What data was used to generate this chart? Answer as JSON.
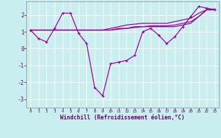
{
  "xlabel": "Windchill (Refroidissement éolien,°C)",
  "x_ticks": [
    0,
    1,
    2,
    3,
    4,
    5,
    6,
    7,
    8,
    9,
    10,
    11,
    12,
    13,
    14,
    15,
    16,
    17,
    18,
    19,
    20,
    21,
    22,
    23
  ],
  "ylim": [
    -3.5,
    2.8
  ],
  "xlim": [
    -0.5,
    23.5
  ],
  "yticks": [
    -3,
    -2,
    -1,
    0,
    1,
    2
  ],
  "bg_color": "#c8eef0",
  "line_color": "#990099",
  "grid_color": "#ffffff",
  "series": [
    [
      1.1,
      0.6,
      0.4,
      1.2,
      2.1,
      2.1,
      0.9,
      0.3,
      -2.3,
      -2.8,
      -0.9,
      -0.8,
      -0.7,
      -0.4,
      1.0,
      1.2,
      0.8,
      0.3,
      0.7,
      1.3,
      1.9,
      2.5,
      2.4,
      2.3
    ],
    [
      1.1,
      1.1,
      1.1,
      1.1,
      1.1,
      1.1,
      1.1,
      1.1,
      1.1,
      1.1,
      1.1,
      1.2,
      1.2,
      1.3,
      1.3,
      1.3,
      1.3,
      1.3,
      1.3,
      1.4,
      1.5,
      1.9,
      2.3,
      2.3
    ],
    [
      1.1,
      1.1,
      1.1,
      1.1,
      1.1,
      1.1,
      1.1,
      1.1,
      1.1,
      1.1,
      1.1,
      1.15,
      1.2,
      1.25,
      1.3,
      1.35,
      1.35,
      1.35,
      1.4,
      1.5,
      1.6,
      1.9,
      2.3,
      2.3
    ],
    [
      1.1,
      1.1,
      1.1,
      1.1,
      1.1,
      1.1,
      1.1,
      1.1,
      1.1,
      1.1,
      1.2,
      1.3,
      1.4,
      1.45,
      1.5,
      1.5,
      1.5,
      1.5,
      1.6,
      1.7,
      1.8,
      2.1,
      2.3,
      2.35
    ]
  ]
}
